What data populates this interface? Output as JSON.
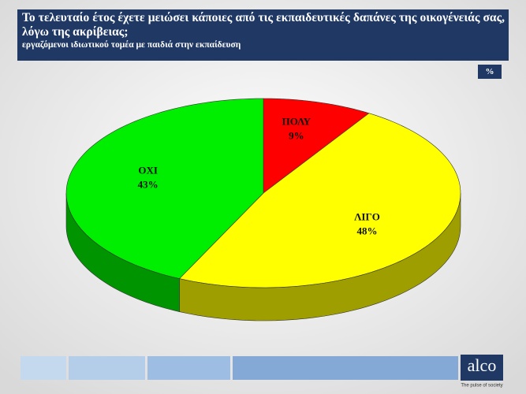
{
  "chart_data": {
    "type": "pie",
    "title": "Το τελευταίο έτος έχετε μειώσει κάποιες από τις εκπαιδευτικές δαπάνες της οικογένειάς σας, λόγω της ακρίβειας;",
    "subtitle": "εργαζόμενοι ιδιωτικού τομέα με παιδιά στην εκπαίδευση",
    "units": "%",
    "categories": [
      "ΠΟΛΥ",
      "ΛΙΓΟ",
      "ΟΧΙ"
    ],
    "values": [
      9,
      48,
      43
    ],
    "value_labels": [
      "9%",
      "48%",
      "43%"
    ],
    "colors": [
      "#ff0000",
      "#ffff00",
      "#00ee00"
    ]
  },
  "brand": {
    "name": "alco",
    "tagline": "The pulse of society"
  }
}
